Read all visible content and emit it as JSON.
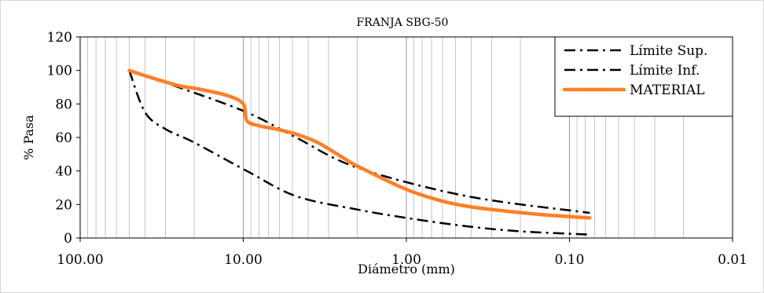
{
  "chart_data": {
    "type": "line",
    "title": "FRANJA SBG-50",
    "xlabel": "Diámetro (mm)",
    "ylabel": "% Pasa",
    "x_scale": "log",
    "x_reversed": true,
    "xlim": [
      100,
      0.01
    ],
    "ylim": [
      0,
      120
    ],
    "x_ticks": [
      100,
      10,
      1,
      0.1,
      0.01
    ],
    "x_tick_labels": [
      "100.00",
      "10.00",
      "1.00",
      "0.10",
      "0.01"
    ],
    "y_ticks": [
      0,
      20,
      40,
      60,
      80,
      100,
      120
    ],
    "y_tick_labels": [
      "0",
      "20",
      "40",
      "60",
      "80",
      "100",
      "120"
    ],
    "grid": "x-minor-vertical",
    "legend": "top-right",
    "series": [
      {
        "name": "Límite Sup.",
        "style": "dash-dot",
        "color": "#000000",
        "points": [
          [
            50,
            100
          ],
          [
            25,
            90
          ],
          [
            9.5,
            75
          ],
          [
            4.75,
            60
          ],
          [
            2,
            42
          ],
          [
            0.425,
            25
          ],
          [
            0.075,
            15
          ]
        ]
      },
      {
        "name": "Límite Inf.",
        "style": "dash-dot",
        "color": "#000000",
        "points": [
          [
            50,
            100
          ],
          [
            40,
            75
          ],
          [
            30,
            65
          ],
          [
            20,
            57
          ],
          [
            9.5,
            40
          ],
          [
            4.75,
            25
          ],
          [
            2,
            17
          ],
          [
            1,
            12
          ],
          [
            0.425,
            7
          ],
          [
            0.2,
            4
          ],
          [
            0.075,
            2
          ]
        ]
      },
      {
        "name": "MATERIAL",
        "style": "solid",
        "color": "#ff7f27",
        "points": [
          [
            50,
            100
          ],
          [
            37.5,
            96
          ],
          [
            25,
            91
          ],
          [
            19,
            89
          ],
          [
            12.5,
            85
          ],
          [
            10,
            80
          ],
          [
            9.5,
            70
          ],
          [
            8,
            67
          ],
          [
            6.3,
            65
          ],
          [
            4.75,
            62
          ],
          [
            3.5,
            57
          ],
          [
            2.36,
            47
          ],
          [
            2,
            43
          ],
          [
            1,
            29
          ],
          [
            0.6,
            22
          ],
          [
            0.425,
            19
          ],
          [
            0.3,
            17
          ],
          [
            0.15,
            14
          ],
          [
            0.075,
            12
          ]
        ]
      }
    ]
  }
}
